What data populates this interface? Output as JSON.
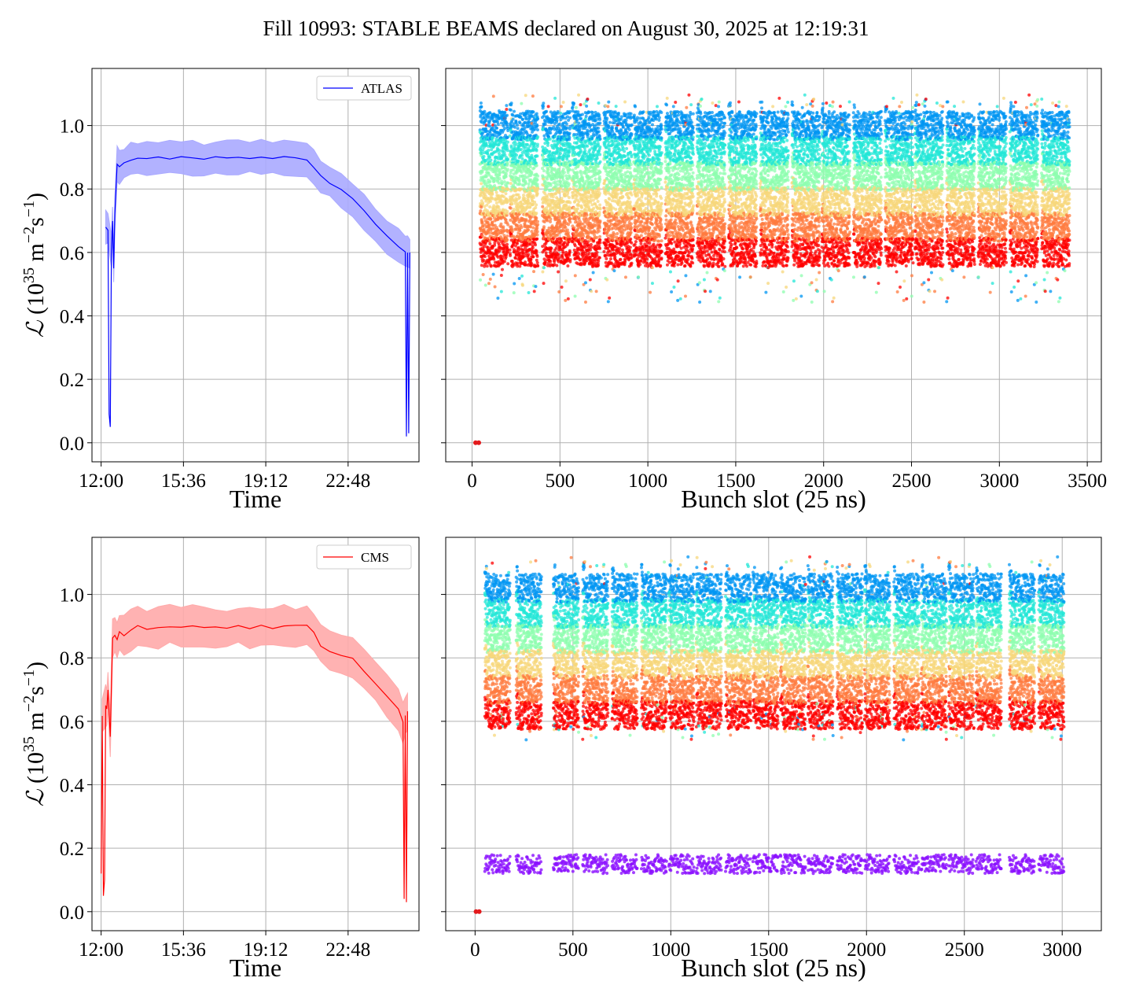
{
  "figure": {
    "title": "Fill 10993: STABLE BEAMS declared on August 30, 2025 at 12:19:31"
  },
  "chart_data": [
    {
      "id": "atlas-time",
      "type": "line",
      "experiment": "ATLAS",
      "legend": "ATLAS",
      "legend_position": "top-right",
      "color": "#0000ff",
      "band_color": "#aaaaff",
      "xlabel": "Time",
      "ylabel": "L (10^35 m^-2 s^-1)",
      "ylabel_parts": {
        "symbol": "ℒ",
        "open": " (10",
        "exp1": "35",
        "mid": " m",
        "exp2": "−2",
        "unit2": "s",
        "exp3": "−1",
        "close": ")"
      },
      "x_ticks": [
        "12:00",
        "15:36",
        "19:12",
        "22:48"
      ],
      "x_tick_hours": [
        12.0,
        15.6,
        19.2,
        22.8
      ],
      "xlim_hours": [
        11.6,
        25.9
      ],
      "y_ticks": [
        "0.0",
        "0.2",
        "0.4",
        "0.6",
        "0.8",
        "1.0"
      ],
      "ylim": [
        -0.06,
        1.18
      ],
      "grid": true,
      "x_hours": [
        12.2,
        12.3,
        12.35,
        12.4,
        12.45,
        12.5,
        12.55,
        12.6,
        12.7,
        12.8,
        13.0,
        13.3,
        13.6,
        14.0,
        14.5,
        15.0,
        15.5,
        16.0,
        16.5,
        17.0,
        17.5,
        18.0,
        18.5,
        19.0,
        19.5,
        20.0,
        20.5,
        21.0,
        21.3,
        21.6,
        22.0,
        22.5,
        23.0,
        23.5,
        24.0,
        24.5,
        25.0,
        25.3,
        25.35,
        25.4,
        25.45,
        25.5
      ],
      "y": [
        0.68,
        0.67,
        0.09,
        0.05,
        0.6,
        0.7,
        0.55,
        0.72,
        0.88,
        0.87,
        0.88,
        0.89,
        0.9,
        0.895,
        0.9,
        0.895,
        0.9,
        0.897,
        0.895,
        0.9,
        0.895,
        0.9,
        0.898,
        0.9,
        0.895,
        0.9,
        0.898,
        0.89,
        0.87,
        0.84,
        0.82,
        0.8,
        0.77,
        0.73,
        0.69,
        0.65,
        0.62,
        0.6,
        0.02,
        0.6,
        0.03,
        0.6
      ],
      "band_halfwidth": 0.05
    },
    {
      "id": "atlas-bunch",
      "type": "scatter",
      "experiment": "ATLAS",
      "xlabel": "Bunch slot (25 ns)",
      "x_ticks": [
        0,
        500,
        1000,
        1500,
        2000,
        2500,
        3000,
        3500
      ],
      "xlim": [
        -150,
        3580
      ],
      "y_ticks": [
        "0.0",
        "0.2",
        "0.4",
        "0.6",
        "0.8",
        "1.0"
      ],
      "ylim": [
        -0.06,
        1.18
      ],
      "grid": true,
      "colormap": "rainbow",
      "trains_start": [
        45,
        215,
        400,
        570,
        750,
        920,
        1100,
        1280,
        1460,
        1640,
        1820,
        1990,
        2170,
        2350,
        2520,
        2700,
        2880,
        3060,
        3240
      ],
      "train_length": 160,
      "gap_after_slot": 2650,
      "y_range": [
        0.6,
        1.0
      ],
      "y_outliers_min": 0.44,
      "y_max": 1.12,
      "zero_point": {
        "x": 20,
        "y": 0.0
      }
    },
    {
      "id": "cms-time",
      "type": "line",
      "experiment": "CMS",
      "legend": "CMS",
      "legend_position": "top-right",
      "color": "#ff0000",
      "band_color": "#ffaaaa",
      "xlabel": "Time",
      "ylabel": "L (10^35 m^-2 s^-1)",
      "ylabel_parts": {
        "symbol": "ℒ",
        "open": " (10",
        "exp1": "35",
        "mid": " m",
        "exp2": "−2",
        "unit2": "s",
        "exp3": "−1",
        "close": ")"
      },
      "x_ticks": [
        "12:00",
        "15:36",
        "19:12",
        "22:48"
      ],
      "x_tick_hours": [
        12.0,
        15.6,
        19.2,
        22.8
      ],
      "xlim_hours": [
        11.6,
        25.9
      ],
      "y_ticks": [
        "0.0",
        "0.2",
        "0.4",
        "0.6",
        "0.8",
        "1.0"
      ],
      "ylim": [
        -0.06,
        1.18
      ],
      "grid": true,
      "x_hours": [
        12.0,
        12.05,
        12.1,
        12.15,
        12.2,
        12.25,
        12.3,
        12.4,
        12.5,
        12.6,
        12.7,
        12.8,
        13.0,
        13.3,
        13.6,
        14.0,
        14.5,
        15.0,
        15.5,
        16.0,
        16.5,
        17.0,
        17.5,
        18.0,
        18.5,
        19.0,
        19.5,
        20.0,
        20.5,
        21.0,
        21.3,
        21.6,
        22.0,
        22.5,
        23.0,
        23.5,
        24.0,
        24.5,
        25.0,
        25.2,
        25.25,
        25.3,
        25.35,
        25.4
      ],
      "y": [
        0.12,
        0.62,
        0.05,
        0.1,
        0.65,
        0.64,
        0.7,
        0.55,
        0.86,
        0.87,
        0.86,
        0.88,
        0.87,
        0.89,
        0.9,
        0.89,
        0.895,
        0.9,
        0.895,
        0.9,
        0.895,
        0.9,
        0.895,
        0.9,
        0.895,
        0.9,
        0.895,
        0.9,
        0.9,
        0.9,
        0.88,
        0.84,
        0.82,
        0.81,
        0.8,
        0.76,
        0.72,
        0.68,
        0.64,
        0.6,
        0.04,
        0.62,
        0.03,
        0.63
      ],
      "band_halfwidth": 0.06
    },
    {
      "id": "cms-bunch",
      "type": "scatter",
      "experiment": "CMS",
      "xlabel": "Bunch slot (25 ns)",
      "x_ticks": [
        0,
        500,
        1000,
        1500,
        2000,
        2500,
        3000
      ],
      "xlim": [
        -150,
        3200
      ],
      "y_ticks": [
        "0.0",
        "0.2",
        "0.4",
        "0.6",
        "0.8",
        "1.0"
      ],
      "ylim": [
        -0.06,
        1.18
      ],
      "grid": true,
      "colormap": "rainbow",
      "trains_start": [
        50,
        210,
        400,
        550,
        700,
        850,
        990,
        1130,
        1280,
        1420,
        1560,
        1700,
        1850,
        1990,
        2140,
        2280,
        2420,
        2560,
        2730,
        2880
      ],
      "train_length": 130,
      "y_range": [
        0.62,
        1.02
      ],
      "y_outliers_min": 0.54,
      "y_max": 1.12,
      "low_band_y": [
        0.12,
        0.18
      ],
      "zero_point": {
        "x": 5,
        "y": 0.0
      }
    }
  ]
}
